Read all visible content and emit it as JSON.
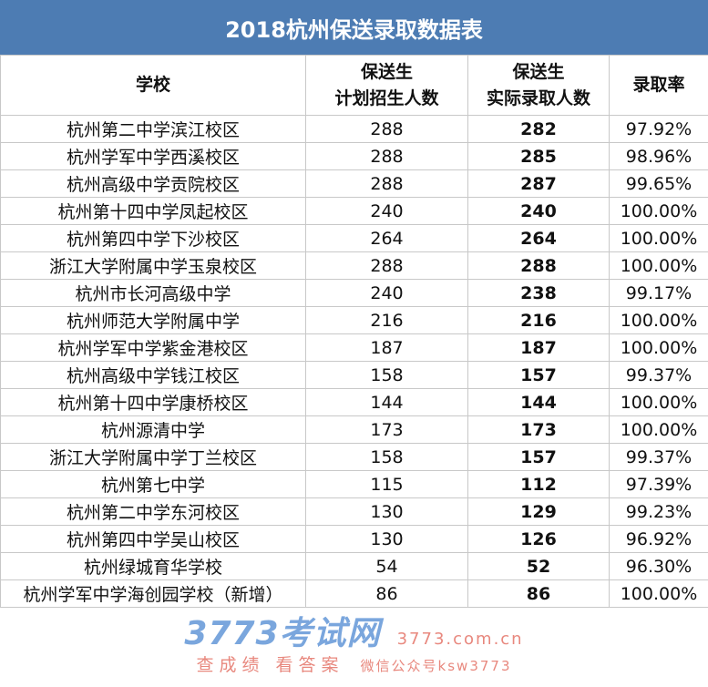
{
  "title": "2018杭州保送录取数据表",
  "headers": {
    "school": "学校",
    "planned_1": "保送生",
    "planned_2": "计划招生人数",
    "actual_1": "保送生",
    "actual_2": "实际录取人数",
    "rate": "录取率"
  },
  "rows": [
    {
      "school": "杭州第二中学滨江校区",
      "planned": "288",
      "actual": "282",
      "rate": "97.92%"
    },
    {
      "school": "杭州学军中学西溪校区",
      "planned": "288",
      "actual": "285",
      "rate": "98.96%"
    },
    {
      "school": "杭州高级中学贡院校区",
      "planned": "288",
      "actual": "287",
      "rate": "99.65%"
    },
    {
      "school": "杭州第十四中学凤起校区",
      "planned": "240",
      "actual": "240",
      "rate": "100.00%"
    },
    {
      "school": "杭州第四中学下沙校区",
      "planned": "264",
      "actual": "264",
      "rate": "100.00%"
    },
    {
      "school": "浙江大学附属中学玉泉校区",
      "planned": "288",
      "actual": "288",
      "rate": "100.00%"
    },
    {
      "school": "杭州市长河高级中学",
      "planned": "240",
      "actual": "238",
      "rate": "99.17%"
    },
    {
      "school": "杭州师范大学附属中学",
      "planned": "216",
      "actual": "216",
      "rate": "100.00%"
    },
    {
      "school": "杭州学军中学紫金港校区",
      "planned": "187",
      "actual": "187",
      "rate": "100.00%"
    },
    {
      "school": "杭州高级中学钱江校区",
      "planned": "158",
      "actual": "157",
      "rate": "99.37%"
    },
    {
      "school": "杭州第十四中学康桥校区",
      "planned": "144",
      "actual": "144",
      "rate": "100.00%"
    },
    {
      "school": "杭州源清中学",
      "planned": "173",
      "actual": "173",
      "rate": "100.00%"
    },
    {
      "school": "浙江大学附属中学丁兰校区",
      "planned": "158",
      "actual": "157",
      "rate": "99.37%"
    },
    {
      "school": "杭州第七中学",
      "planned": "115",
      "actual": "112",
      "rate": "97.39%"
    },
    {
      "school": "杭州第二中学东河校区",
      "planned": "130",
      "actual": "129",
      "rate": "99.23%"
    },
    {
      "school": "杭州第四中学吴山校区",
      "planned": "130",
      "actual": "126",
      "rate": "96.92%"
    },
    {
      "school": "杭州绿城育华学校",
      "planned": "54",
      "actual": "52",
      "rate": "96.30%"
    },
    {
      "school": "杭州学军中学海创园学校（新增）",
      "planned": "86",
      "actual": "86",
      "rate": "100.00%"
    }
  ],
  "watermark": {
    "logo": "3773考试网",
    "url": "3773.com.cn",
    "slogan": "查成绩 看答案",
    "wechat": "微信公众号ksw3773"
  },
  "colors": {
    "title_bg": "#4d7cb3"
  }
}
